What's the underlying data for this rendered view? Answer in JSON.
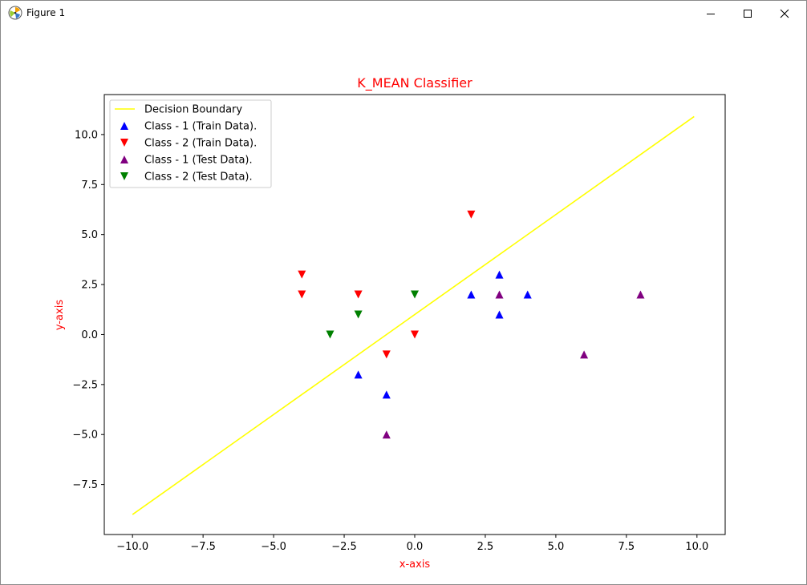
{
  "window": {
    "title": "Figure 1",
    "icons": {
      "app": "matplotlib-icon",
      "minimize": "minimize-icon",
      "maximize": "maximize-icon",
      "close": "close-icon"
    }
  },
  "chart_data": {
    "type": "scatter",
    "title": "K_MEAN Classifier",
    "xlabel": "x-axis",
    "ylabel": "y-axis",
    "xlim": [
      -11,
      11
    ],
    "ylim": [
      -10,
      12
    ],
    "xticks": [
      -10,
      -7.5,
      -5,
      -2.5,
      0,
      2.5,
      5,
      7.5,
      10
    ],
    "xtick_labels": [
      "−10.0",
      "−7.5",
      "−5.0",
      "−2.5",
      "0.0",
      "2.5",
      "5.0",
      "7.5",
      "10.0"
    ],
    "yticks": [
      -7.5,
      -5,
      -2.5,
      0,
      2.5,
      5,
      7.5,
      10
    ],
    "ytick_labels": [
      "−7.5",
      "−5.0",
      "−2.5",
      "0.0",
      "2.5",
      "5.0",
      "7.5",
      "10.0"
    ],
    "grid": false,
    "legend_position": "top-left",
    "colors": {
      "title": "#ff0000",
      "axis_labels": "#ff0000"
    },
    "series": [
      {
        "name": "Decision Boundary",
        "kind": "line",
        "color": "#ffff00",
        "x": [
          -10,
          9.9
        ],
        "y": [
          -9,
          10.9
        ]
      },
      {
        "name": "Class - 1 (Train Data).",
        "kind": "scatter",
        "marker": "triangle-up",
        "color": "#0000ff",
        "x": [
          -2,
          -1,
          2,
          3,
          3,
          4
        ],
        "y": [
          -2,
          -3,
          2,
          3,
          1,
          2
        ]
      },
      {
        "name": "Class - 2 (Train Data).",
        "kind": "scatter",
        "marker": "triangle-down",
        "color": "#ff0000",
        "x": [
          -4,
          -4,
          -2,
          -1,
          0,
          2
        ],
        "y": [
          3,
          2,
          2,
          -1,
          0,
          6
        ]
      },
      {
        "name": "Class - 1 (Test Data).",
        "kind": "scatter",
        "marker": "triangle-up",
        "color": "#800080",
        "x": [
          3,
          6,
          8,
          -1
        ],
        "y": [
          2,
          -1,
          2,
          -5
        ]
      },
      {
        "name": "Class - 2 (Test Data).",
        "kind": "scatter",
        "marker": "triangle-down",
        "color": "#008000",
        "x": [
          -3,
          -2,
          0
        ],
        "y": [
          0,
          1,
          2
        ]
      }
    ]
  }
}
